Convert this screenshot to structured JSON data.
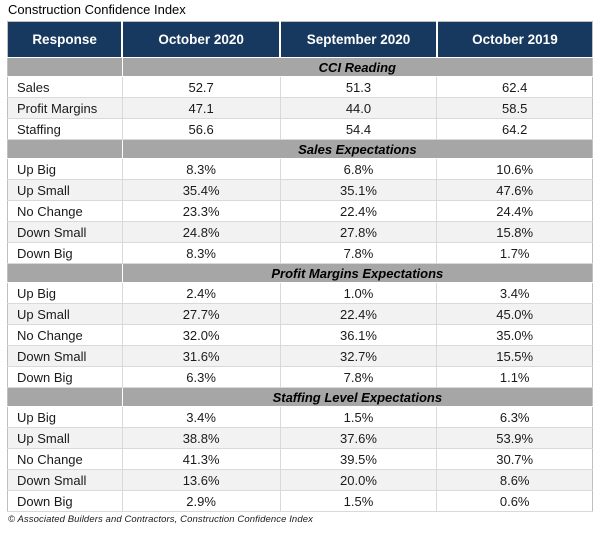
{
  "title": "Construction Confidence Index",
  "source_note": "© Associated Builders and Contractors, Construction Confidence Index",
  "colors": {
    "header_bg": "#17395F",
    "header_text": "#FFFFFF",
    "section_bg": "#A6A6A6",
    "row_alt_bg": "#F2F2F2",
    "grid_border": "#D9D9D9"
  },
  "chart_data": {
    "type": "table",
    "title": "Construction Confidence Index",
    "source": "© Associated Builders and Contractors, Construction Confidence Index",
    "columns": [
      "Response",
      "October 2020",
      "September 2020",
      "October 2019"
    ],
    "sections": [
      {
        "label": "CCI Reading",
        "rows": [
          {
            "label": "Sales",
            "values": [
              "52.7",
              "51.3",
              "62.4"
            ]
          },
          {
            "label": "Profit Margins",
            "values": [
              "47.1",
              "44.0",
              "58.5"
            ]
          },
          {
            "label": "Staffing",
            "values": [
              "56.6",
              "54.4",
              "64.2"
            ]
          }
        ]
      },
      {
        "label": "Sales Expectations",
        "rows": [
          {
            "label": "Up Big",
            "values": [
              "8.3%",
              "6.8%",
              "10.6%"
            ]
          },
          {
            "label": "Up Small",
            "values": [
              "35.4%",
              "35.1%",
              "47.6%"
            ]
          },
          {
            "label": "No Change",
            "values": [
              "23.3%",
              "22.4%",
              "24.4%"
            ]
          },
          {
            "label": "Down Small",
            "values": [
              "24.8%",
              "27.8%",
              "15.8%"
            ]
          },
          {
            "label": "Down Big",
            "values": [
              "8.3%",
              "7.8%",
              "1.7%"
            ]
          }
        ]
      },
      {
        "label": "Profit Margins Expectations",
        "rows": [
          {
            "label": "Up Big",
            "values": [
              "2.4%",
              "1.0%",
              "3.4%"
            ]
          },
          {
            "label": "Up Small",
            "values": [
              "27.7%",
              "22.4%",
              "45.0%"
            ]
          },
          {
            "label": "No Change",
            "values": [
              "32.0%",
              "36.1%",
              "35.0%"
            ]
          },
          {
            "label": "Down Small",
            "values": [
              "31.6%",
              "32.7%",
              "15.5%"
            ]
          },
          {
            "label": "Down Big",
            "values": [
              "6.3%",
              "7.8%",
              "1.1%"
            ]
          }
        ]
      },
      {
        "label": "Staffing Level Expectations",
        "rows": [
          {
            "label": "Up Big",
            "values": [
              "3.4%",
              "1.5%",
              "6.3%"
            ]
          },
          {
            "label": "Up Small",
            "values": [
              "38.8%",
              "37.6%",
              "53.9%"
            ]
          },
          {
            "label": "No Change",
            "values": [
              "41.3%",
              "39.5%",
              "30.7%"
            ]
          },
          {
            "label": "Down Small",
            "values": [
              "13.6%",
              "20.0%",
              "8.6%"
            ]
          },
          {
            "label": "Down Big",
            "values": [
              "2.9%",
              "1.5%",
              "0.6%"
            ]
          }
        ]
      }
    ]
  }
}
